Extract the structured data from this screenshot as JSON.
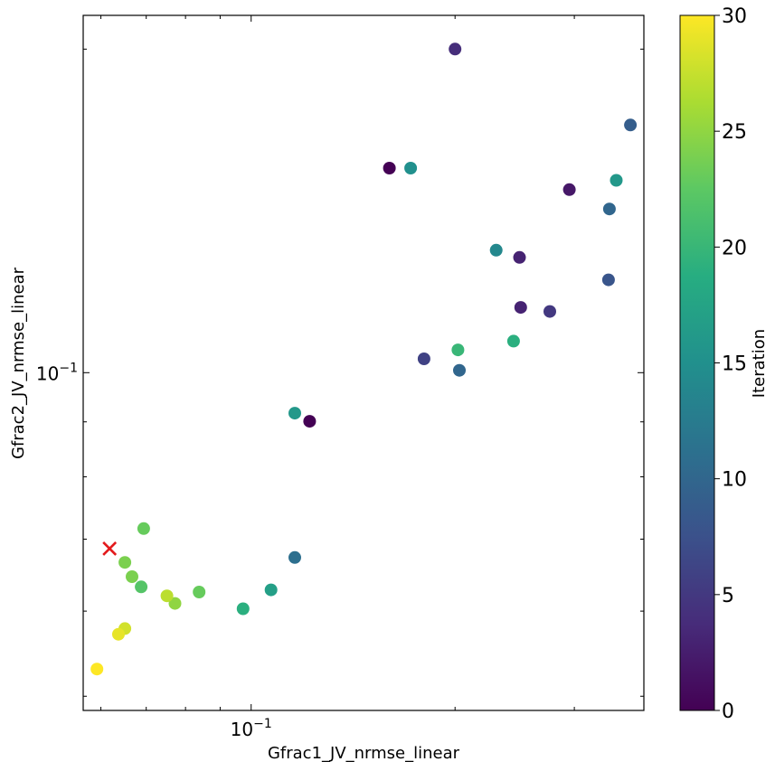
{
  "chart_data": {
    "type": "scatter",
    "xlabel": "Gfrac1_JV_nrmse_linear",
    "ylabel": "Gfrac2_JV_nrmse_linear",
    "xscale": "log",
    "yscale": "log",
    "xlim": [
      0.0565,
      0.38
    ],
    "ylim": [
      0.0485,
      0.215
    ],
    "x_tick_labels": [
      {
        "value": 0.1,
        "base": "10",
        "exp": "−1"
      }
    ],
    "y_tick_labels": [
      {
        "value": 0.1,
        "base": "10",
        "exp": "−1"
      }
    ],
    "grid": false,
    "colormap": "viridis",
    "colorbar": {
      "label": "Iteration",
      "range": [
        0,
        30
      ],
      "ticks": [
        0,
        5,
        10,
        15,
        20,
        25,
        30
      ]
    },
    "points": [
      {
        "x": 0.16,
        "y": 0.155,
        "iteration": 0
      },
      {
        "x": 0.122,
        "y": 0.0901,
        "iteration": 0
      },
      {
        "x": 0.295,
        "y": 0.148,
        "iteration": 2
      },
      {
        "x": 0.249,
        "y": 0.128,
        "iteration": 3
      },
      {
        "x": 0.25,
        "y": 0.115,
        "iteration": 3
      },
      {
        "x": 0.2,
        "y": 0.2,
        "iteration": 4
      },
      {
        "x": 0.276,
        "y": 0.114,
        "iteration": 5
      },
      {
        "x": 0.18,
        "y": 0.103,
        "iteration": 6
      },
      {
        "x": 0.337,
        "y": 0.122,
        "iteration": 8
      },
      {
        "x": 0.363,
        "y": 0.17,
        "iteration": 9
      },
      {
        "x": 0.338,
        "y": 0.142,
        "iteration": 10
      },
      {
        "x": 0.203,
        "y": 0.1005,
        "iteration": 10
      },
      {
        "x": 0.116,
        "y": 0.0673,
        "iteration": 11
      },
      {
        "x": 0.23,
        "y": 0.13,
        "iteration": 14
      },
      {
        "x": 0.172,
        "y": 0.155,
        "iteration": 15
      },
      {
        "x": 0.346,
        "y": 0.151,
        "iteration": 16
      },
      {
        "x": 0.116,
        "y": 0.0917,
        "iteration": 16
      },
      {
        "x": 0.107,
        "y": 0.0628,
        "iteration": 17
      },
      {
        "x": 0.0973,
        "y": 0.0603,
        "iteration": 19
      },
      {
        "x": 0.244,
        "y": 0.107,
        "iteration": 19
      },
      {
        "x": 0.202,
        "y": 0.105,
        "iteration": 20
      },
      {
        "x": 0.0688,
        "y": 0.0632,
        "iteration": 22
      },
      {
        "x": 0.0838,
        "y": 0.0625,
        "iteration": 23
      },
      {
        "x": 0.0694,
        "y": 0.0716,
        "iteration": 23
      },
      {
        "x": 0.0667,
        "y": 0.0646,
        "iteration": 24
      },
      {
        "x": 0.0651,
        "y": 0.0666,
        "iteration": 24
      },
      {
        "x": 0.0772,
        "y": 0.061,
        "iteration": 25
      },
      {
        "x": 0.0751,
        "y": 0.062,
        "iteration": 27
      },
      {
        "x": 0.0651,
        "y": 0.0578,
        "iteration": 28
      },
      {
        "x": 0.0637,
        "y": 0.0571,
        "iteration": 29
      },
      {
        "x": 0.0592,
        "y": 0.053,
        "iteration": 30
      }
    ],
    "marker": {
      "x": 0.0618,
      "y": 0.0686,
      "symbol": "x",
      "color": "#e31a1c"
    }
  }
}
